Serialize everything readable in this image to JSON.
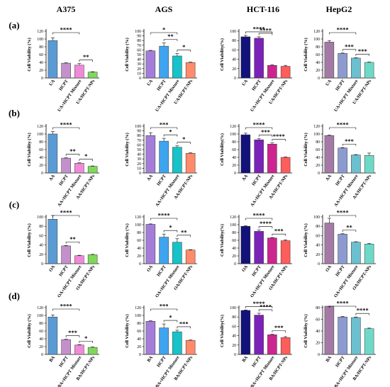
{
  "columns": [
    "A375",
    "AGS",
    "HCT-116",
    "HepG2"
  ],
  "rows": [
    "(a)",
    "(b)",
    "(c)",
    "(d)"
  ],
  "ylabels": [
    "Cell Viability (%)",
    "Cell Viability(%)"
  ],
  "palettes": [
    [
      "#5b9bd5",
      "#c490cc",
      "#f08ad8",
      "#7fd85a"
    ],
    [
      "#a47ddb",
      "#3ea4ef",
      "#16c3c8",
      "#ff8b6b"
    ],
    [
      "#12127a",
      "#7b22b8",
      "#cc2590",
      "#ff5c5c"
    ],
    [
      "#a37aa5",
      "#8c9bcf",
      "#6cbfcf",
      "#6fd9c8"
    ]
  ],
  "chart_data": [
    {
      "type": "bar",
      "row": "(a)",
      "column": "A375",
      "ylabel": "Cell Viability (%)",
      "ylim": [
        0,
        120
      ],
      "yticks": [
        0,
        20,
        40,
        60,
        80,
        100,
        120
      ],
      "categories": [
        "UA",
        "HCPT",
        "UA+HCPT Mixture",
        "UA/HCPT-NPs"
      ],
      "values": [
        96,
        38,
        33,
        15
      ],
      "errors": [
        7,
        1,
        4,
        1
      ],
      "significance": [
        {
          "from": 0,
          "to": 2,
          "label": "****"
        },
        {
          "from": 2,
          "to": 3,
          "label": "**"
        }
      ]
    },
    {
      "type": "bar",
      "row": "(a)",
      "column": "AGS",
      "ylabel": "Cell Viability (%)",
      "ylim": [
        0,
        100
      ],
      "yticks": [
        0,
        10,
        20,
        30,
        40,
        50,
        60,
        70,
        80,
        90,
        100
      ],
      "categories": [
        "UA",
        "HCPT",
        "UA+HCPT Mixture",
        "UA/HCPT-NPs"
      ],
      "values": [
        58,
        68,
        47,
        33
      ],
      "errors": [
        1,
        7,
        5,
        1
      ],
      "significance": [
        {
          "from": 0,
          "to": 2,
          "label": "*"
        },
        {
          "from": 1,
          "to": 2,
          "label": "**"
        },
        {
          "from": 2,
          "to": 3,
          "label": "*"
        }
      ]
    },
    {
      "type": "bar",
      "row": "(a)",
      "column": "HCT-116",
      "ylabel": "Cell Viability(%)",
      "ylim": [
        0,
        100
      ],
      "yticks": [
        0,
        20,
        40,
        60,
        80,
        100
      ],
      "categories": [
        "UA",
        "HCPT",
        "UA+HCPT Mixture",
        "UA/HCPT-NPs"
      ],
      "values": [
        88,
        85,
        27,
        25
      ],
      "errors": [
        3,
        3,
        1,
        2
      ],
      "significance": [
        {
          "from": 0,
          "to": 2,
          "label": "****"
        },
        {
          "from": 1,
          "to": 2,
          "label": "****"
        }
      ]
    },
    {
      "type": "bar",
      "row": "(a)",
      "column": "HepG2",
      "ylabel": "Cell Viability (%)",
      "ylim": [
        0,
        120
      ],
      "yticks": [
        0,
        20,
        40,
        60,
        80,
        100,
        120
      ],
      "categories": [
        "UA",
        "HCPT",
        "UA+HCPT Mixture",
        "UA/HCPT-NPs"
      ],
      "values": [
        92,
        63,
        51,
        40
      ],
      "errors": [
        4,
        1,
        1,
        1
      ],
      "significance": [
        {
          "from": 0,
          "to": 2,
          "label": "****"
        },
        {
          "from": 1,
          "to": 2,
          "label": "***"
        },
        {
          "from": 2,
          "to": 3,
          "label": "***"
        }
      ]
    },
    {
      "type": "bar",
      "row": "(b)",
      "column": "A375",
      "ylabel": "Cell Viability (%)",
      "ylim": [
        0,
        120
      ],
      "yticks": [
        0,
        20,
        40,
        60,
        80,
        100,
        120
      ],
      "categories": [
        "AA",
        "HCPT",
        "AA+HCPT Mixture",
        "AA/HCPT-NPs"
      ],
      "values": [
        100,
        38,
        25,
        17
      ],
      "errors": [
        6,
        1,
        1,
        1
      ],
      "significance": [
        {
          "from": 0,
          "to": 2,
          "label": "****"
        },
        {
          "from": 1,
          "to": 2,
          "label": "**"
        },
        {
          "from": 2,
          "to": 3,
          "label": "*"
        }
      ]
    },
    {
      "type": "bar",
      "row": "(b)",
      "column": "AGS",
      "ylabel": "Cell Viability (%)",
      "ylim": [
        0,
        100
      ],
      "yticks": [
        0,
        10,
        20,
        30,
        40,
        50,
        60,
        70,
        80,
        90,
        100
      ],
      "categories": [
        "AA",
        "HCPT",
        "AA+HCPT Mixture",
        "AA/HCPT-NPs"
      ],
      "values": [
        80,
        68,
        55,
        42
      ],
      "errors": [
        6,
        6,
        3,
        1
      ],
      "significance": [
        {
          "from": 0,
          "to": 2,
          "label": "***"
        },
        {
          "from": 1,
          "to": 2,
          "label": "*"
        },
        {
          "from": 2,
          "to": 3,
          "label": "*"
        }
      ]
    },
    {
      "type": "bar",
      "row": "(b)",
      "column": "HCT-116",
      "ylabel": "Cell Viability(%)",
      "ylim": [
        0,
        120
      ],
      "yticks": [
        0,
        20,
        40,
        60,
        80,
        100,
        120
      ],
      "categories": [
        "AA",
        "HCPT",
        "AA+HCPT Mixture",
        "AA/HCPT-NPs"
      ],
      "values": [
        98,
        85,
        74,
        40
      ],
      "errors": [
        4,
        3,
        3,
        1
      ],
      "significance": [
        {
          "from": 0,
          "to": 2,
          "label": "****"
        },
        {
          "from": 1,
          "to": 2,
          "label": "***"
        },
        {
          "from": 2,
          "to": 3,
          "label": "****"
        }
      ]
    },
    {
      "type": "bar",
      "row": "(b)",
      "column": "HepG2",
      "ylabel": "Cell Viability (%)",
      "ylim": [
        0,
        120
      ],
      "yticks": [
        0,
        20,
        40,
        60,
        80,
        100,
        120
      ],
      "categories": [
        "AA",
        "HCPT",
        "AA+HCPT Mixture",
        "AA/HCPT-NPs"
      ],
      "values": [
        96,
        64,
        46,
        45
      ],
      "errors": [
        1,
        1,
        1,
        6
      ],
      "significance": [
        {
          "from": 0,
          "to": 2,
          "label": "****"
        },
        {
          "from": 1,
          "to": 2,
          "label": "***"
        }
      ]
    },
    {
      "type": "bar",
      "row": "(c)",
      "column": "A375",
      "ylabel": "Cell Viability (%)",
      "ylim": [
        0,
        100
      ],
      "yticks": [
        0,
        20,
        40,
        60,
        80,
        100
      ],
      "categories": [
        "OA",
        "HCPT",
        "OA+HCPT Mixture",
        "OA/HCPT-NPs"
      ],
      "values": [
        95,
        38,
        17,
        19
      ],
      "errors": [
        11,
        1,
        1,
        1
      ],
      "significance": [
        {
          "from": 0,
          "to": 2,
          "label": "****"
        },
        {
          "from": 1,
          "to": 2,
          "label": "**"
        }
      ]
    },
    {
      "type": "bar",
      "row": "(c)",
      "column": "AGS",
      "ylabel": "Cell Viability (%)",
      "ylim": [
        0,
        120
      ],
      "yticks": [
        0,
        20,
        40,
        60,
        80,
        100,
        120
      ],
      "categories": [
        "OA",
        "HCPT",
        "OA+HCPT Mixture",
        "OA/HCPT-NPs"
      ],
      "values": [
        101,
        68,
        55,
        35
      ],
      "errors": [
        1,
        8,
        9,
        1
      ],
      "significance": [
        {
          "from": 0,
          "to": 2,
          "label": "****"
        },
        {
          "from": 1,
          "to": 2,
          "label": "*"
        },
        {
          "from": 2,
          "to": 3,
          "label": "**"
        }
      ]
    },
    {
      "type": "bar",
      "row": "(c)",
      "column": "HCT-116",
      "ylabel": "Cell Viability(%)",
      "ylim": [
        0,
        120
      ],
      "yticks": [
        0,
        20,
        40,
        60,
        80,
        100,
        120
      ],
      "categories": [
        "OA",
        "HCPT",
        "OA+HCPT Mixture",
        "OA/HCPT-NPs"
      ],
      "values": [
        96,
        83,
        66,
        59
      ],
      "errors": [
        1,
        3,
        1,
        2
      ],
      "significance": [
        {
          "from": 0,
          "to": 2,
          "label": "****"
        },
        {
          "from": 1,
          "to": 2,
          "label": "****"
        },
        {
          "from": 2,
          "to": 3,
          "label": "***"
        }
      ]
    },
    {
      "type": "bar",
      "row": "(c)",
      "column": "HepG2",
      "ylabel": "Cell Viability (%)",
      "ylim": [
        0,
        100
      ],
      "yticks": [
        0,
        20,
        40,
        60,
        80,
        100
      ],
      "categories": [
        "OA",
        "HCPT",
        "OA+HCPT Mixture",
        "OA/HCPT-NPs"
      ],
      "values": [
        87,
        63,
        46,
        42
      ],
      "errors": [
        10,
        1,
        1,
        1
      ],
      "significance": [
        {
          "from": 0,
          "to": 2,
          "label": "****"
        },
        {
          "from": 1,
          "to": 2,
          "label": "**"
        }
      ]
    },
    {
      "type": "bar",
      "row": "(d)",
      "column": "A375",
      "ylabel": "Cell Viability (%)",
      "ylim": [
        0,
        120
      ],
      "yticks": [
        0,
        20,
        40,
        60,
        80,
        100,
        120
      ],
      "categories": [
        "BA",
        "HCPT",
        "BA+HCPT Mixture",
        "BA/HCPT-NPs"
      ],
      "values": [
        96,
        38,
        24,
        18
      ],
      "errors": [
        5,
        1,
        1,
        1
      ],
      "significance": [
        {
          "from": 0,
          "to": 2,
          "label": "****"
        },
        {
          "from": 1,
          "to": 2,
          "label": "***"
        },
        {
          "from": 2,
          "to": 3,
          "label": "*"
        }
      ]
    },
    {
      "type": "bar",
      "row": "(d)",
      "column": "AGS",
      "ylabel": "Cell Viability (%)",
      "ylim": [
        0,
        120
      ],
      "yticks": [
        0,
        20,
        40,
        60,
        80,
        100,
        120
      ],
      "categories": [
        "BA",
        "HCPT",
        "BA+HCPT Mixture",
        "BA/HCPT-NPs"
      ],
      "values": [
        85,
        68,
        58,
        36
      ],
      "errors": [
        1,
        10,
        4,
        1
      ],
      "significance": [
        {
          "from": 0,
          "to": 2,
          "label": "***"
        },
        {
          "from": 1,
          "to": 2,
          "label": "*"
        },
        {
          "from": 2,
          "to": 3,
          "label": "***"
        }
      ]
    },
    {
      "type": "bar",
      "row": "(d)",
      "column": "HCT-116",
      "ylabel": "Cell Viability(%)",
      "ylim": [
        0,
        100
      ],
      "yticks": [
        0,
        20,
        40,
        60,
        80,
        100
      ],
      "categories": [
        "BA",
        "HCPT",
        "BA+HCPT Mixture",
        "BA/HCPT-NPs"
      ],
      "values": [
        94,
        84,
        42,
        36
      ],
      "errors": [
        1,
        4,
        1,
        2
      ],
      "significance": [
        {
          "from": 0,
          "to": 2,
          "label": "****"
        },
        {
          "from": 1,
          "to": 2,
          "label": "****"
        },
        {
          "from": 2,
          "to": 3,
          "label": "***"
        }
      ]
    },
    {
      "type": "bar",
      "row": "(d)",
      "column": "HepG2",
      "ylabel": "Cell Viability (%)",
      "ylim": [
        0,
        80
      ],
      "yticks": [
        0,
        20,
        40,
        60,
        80
      ],
      "categories": [
        "BA",
        "HCPT",
        "BA+HCPT Mixture",
        "BA/HCPT-NPs"
      ],
      "values": [
        83,
        64,
        63,
        44
      ],
      "errors": [
        1,
        1,
        1,
        1
      ],
      "significance": [
        {
          "from": 0,
          "to": 2,
          "label": "****"
        },
        {
          "from": 2,
          "to": 3,
          "label": "****"
        }
      ]
    }
  ]
}
